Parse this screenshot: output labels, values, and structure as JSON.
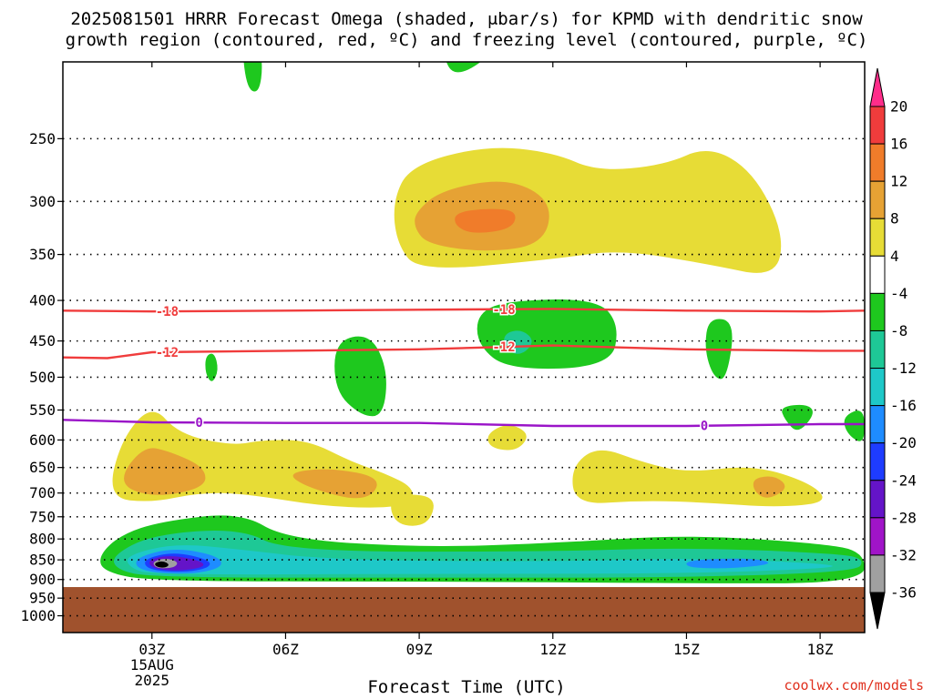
{
  "title_line1": "2025081501 HRRR Forecast Omega (shaded, μbar/s) for KPMD with dendritic snow",
  "title_line2": "growth region (contoured, red, ºC) and freezing level (contoured, purple, ºC)",
  "xlabel": "Forecast Time (UTC)",
  "credit": "coolwx.com/models",
  "chart_data": {
    "type": "heatmap",
    "title": "2025081501 HRRR Forecast Omega (shaded, μbar/s) for KPMD with dendritic snow growth region (contoured, red, ºC) and freezing level (contoured, purple, ºC)",
    "xlabel": "Forecast Time (UTC)",
    "ylabel": "",
    "x_ticks": [
      {
        "hour": 3,
        "label": "03Z"
      },
      {
        "hour": 6,
        "label": "06Z"
      },
      {
        "hour": 9,
        "label": "09Z"
      },
      {
        "hour": 12,
        "label": "12Z"
      },
      {
        "hour": 15,
        "label": "15Z"
      },
      {
        "hour": 18,
        "label": "18Z"
      }
    ],
    "date_label": [
      "15AUG",
      "2025"
    ],
    "xlim": [
      1,
      19
    ],
    "y_scale": "log-pressure",
    "ylim": [
      1050,
      200
    ],
    "y_ticks": [
      250,
      300,
      350,
      400,
      450,
      500,
      550,
      600,
      650,
      700,
      750,
      800,
      850,
      900,
      950,
      1000
    ],
    "grid": true,
    "surface_pressure": 920,
    "surface_color": "#a0522d",
    "colorbar": {
      "labels": [
        "20",
        "16",
        "12",
        "8",
        "4",
        "-4",
        "-8",
        "-12",
        "-16",
        "-20",
        "-24",
        "-28",
        "-32",
        "-36"
      ],
      "colors": [
        "#ff2d8a",
        "#f03c3c",
        "#f07c2a",
        "#e6a234",
        "#e7dc36",
        "#ffffff",
        "#1ec81e",
        "#1ec896",
        "#1ec8c8",
        "#1e8cff",
        "#1e3cff",
        "#6414c8",
        "#a014c8",
        "#a0a0a0",
        "#000000"
      ]
    },
    "contours": [
      {
        "label": "-18",
        "color": "#f03c3c",
        "points": [
          [
            1,
            412
          ],
          [
            3,
            413
          ],
          [
            6,
            412
          ],
          [
            9,
            411
          ],
          [
            12,
            410
          ],
          [
            15,
            412
          ],
          [
            18,
            413
          ],
          [
            19,
            412
          ]
        ]
      },
      {
        "label": "-12",
        "color": "#f03c3c",
        "points": [
          [
            1,
            472
          ],
          [
            2,
            473
          ],
          [
            3,
            465
          ],
          [
            6,
            463
          ],
          [
            9,
            461
          ],
          [
            12,
            456
          ],
          [
            15,
            461
          ],
          [
            18,
            463
          ],
          [
            19,
            463
          ]
        ]
      },
      {
        "label": "0",
        "color": "#9a14c8",
        "points": [
          [
            1,
            566
          ],
          [
            3,
            570
          ],
          [
            6,
            571
          ],
          [
            9,
            571
          ],
          [
            12,
            576
          ],
          [
            15,
            576
          ],
          [
            18,
            573
          ],
          [
            19,
            573
          ]
        ]
      }
    ],
    "omega_regions": [
      {
        "value": -4,
        "color": "#1ec81e",
        "outline": [
          [
            5.0,
            180
          ],
          [
            5.1,
            215
          ],
          [
            5.4,
            220
          ],
          [
            5.5,
            200
          ],
          [
            5.3,
            180
          ]
        ]
      },
      {
        "value": -4,
        "color": "#1ec81e",
        "outline": [
          [
            9.5,
            195
          ],
          [
            9.8,
            210
          ],
          [
            10.7,
            195
          ],
          [
            11.0,
            175
          ],
          [
            9.7,
            175
          ]
        ]
      },
      {
        "value": -4,
        "color": "#1ec81e",
        "outline": [
          [
            10.3,
            415
          ],
          [
            11.0,
            400
          ],
          [
            13.0,
            398
          ],
          [
            13.5,
            430
          ],
          [
            13.3,
            485
          ],
          [
            11.0,
            490
          ],
          [
            10.3,
            455
          ]
        ]
      },
      {
        "value": -8,
        "color": "#1ec896",
        "outline": [
          [
            10.9,
            440
          ],
          [
            11.3,
            435
          ],
          [
            11.6,
            450
          ],
          [
            11.3,
            470
          ],
          [
            10.9,
            462
          ]
        ]
      },
      {
        "value": -4,
        "color": "#1ec81e",
        "outline": [
          [
            7.1,
            450
          ],
          [
            7.9,
            440
          ],
          [
            8.3,
            490
          ],
          [
            8.2,
            560
          ],
          [
            7.7,
            560
          ],
          [
            7.1,
            520
          ]
        ]
      },
      {
        "value": -4,
        "color": "#1ec81e",
        "outline": [
          [
            4.2,
            470
          ],
          [
            4.4,
            465
          ],
          [
            4.5,
            490
          ],
          [
            4.35,
            510
          ],
          [
            4.2,
            495
          ]
        ]
      },
      {
        "value": -4,
        "color": "#1ec81e",
        "outline": [
          [
            15.5,
            420
          ],
          [
            16.1,
            425
          ],
          [
            15.9,
            505
          ],
          [
            15.6,
            500
          ],
          [
            15.4,
            460
          ]
        ]
      },
      {
        "value": -4,
        "color": "#1ec81e",
        "outline": [
          [
            17.1,
            545
          ],
          [
            17.7,
            540
          ],
          [
            17.9,
            555
          ],
          [
            17.5,
            590
          ],
          [
            17.2,
            565
          ]
        ]
      },
      {
        "value": -4,
        "color": "#1ec81e",
        "outline": [
          [
            18.5,
            560
          ],
          [
            19.0,
            545
          ],
          [
            19.0,
            610
          ],
          [
            18.6,
            590
          ]
        ]
      },
      {
        "value": -4,
        "color": "#1ec81e",
        "outline": [
          [
            1.8,
            840
          ],
          [
            2.3,
            790
          ],
          [
            3.2,
            760
          ],
          [
            5.0,
            740
          ],
          [
            6.0,
            800
          ],
          [
            9.0,
            820
          ],
          [
            12.0,
            810
          ],
          [
            15.0,
            790
          ],
          [
            18.0,
            810
          ],
          [
            19.0,
            830
          ],
          [
            19.0,
            910
          ],
          [
            15.0,
            910
          ],
          [
            9.0,
            905
          ],
          [
            3.0,
            905
          ],
          [
            1.9,
            880
          ]
        ]
      },
      {
        "value": -8,
        "color": "#1ec896",
        "outline": [
          [
            2.1,
            840
          ],
          [
            3.0,
            790
          ],
          [
            5.0,
            775
          ],
          [
            6.0,
            830
          ],
          [
            12.0,
            830
          ],
          [
            15.0,
            820
          ],
          [
            18.5,
            835
          ],
          [
            19.0,
            850
          ],
          [
            18.8,
            880
          ],
          [
            15.0,
            895
          ],
          [
            9.0,
            895
          ],
          [
            3.0,
            895
          ],
          [
            2.2,
            875
          ]
        ]
      },
      {
        "value": -12,
        "color": "#1ec8c8",
        "outline": [
          [
            2.4,
            840
          ],
          [
            3.5,
            810
          ],
          [
            5.0,
            825
          ],
          [
            7.0,
            850
          ],
          [
            12.0,
            855
          ],
          [
            15.0,
            845
          ],
          [
            18.0,
            858
          ],
          [
            18.5,
            870
          ],
          [
            15.0,
            885
          ],
          [
            9.0,
            885
          ],
          [
            3.0,
            888
          ],
          [
            2.5,
            870
          ]
        ]
      },
      {
        "value": -16,
        "color": "#1e8cff",
        "outline": [
          [
            15.0,
            850
          ],
          [
            16.5,
            845
          ],
          [
            17.0,
            860
          ],
          [
            16.0,
            872
          ],
          [
            15.0,
            870
          ]
        ]
      },
      {
        "value": -16,
        "color": "#1e8cff",
        "outline": [
          [
            2.6,
            845
          ],
          [
            3.5,
            820
          ],
          [
            4.5,
            840
          ],
          [
            4.6,
            870
          ],
          [
            3.8,
            888
          ],
          [
            2.7,
            878
          ]
        ]
      },
      {
        "value": -24,
        "color": "#1e3cff",
        "outline": [
          [
            2.8,
            848
          ],
          [
            3.5,
            830
          ],
          [
            4.3,
            850
          ],
          [
            4.3,
            870
          ],
          [
            3.7,
            882
          ],
          [
            2.9,
            875
          ]
        ]
      },
      {
        "value": -28,
        "color": "#6414c8",
        "outline": [
          [
            2.9,
            850
          ],
          [
            3.4,
            838
          ],
          [
            4.1,
            852
          ],
          [
            4.2,
            868
          ],
          [
            3.6,
            878
          ],
          [
            3.0,
            872
          ]
        ]
      },
      {
        "value": -32,
        "color": "#a0a0a0",
        "outline": [
          [
            3.0,
            855
          ],
          [
            3.3,
            845
          ],
          [
            3.6,
            855
          ],
          [
            3.5,
            870
          ],
          [
            3.1,
            872
          ]
        ]
      },
      {
        "value": -36,
        "color": "#000000",
        "outline": [
          [
            3.05,
            858
          ],
          [
            3.25,
            852
          ],
          [
            3.4,
            862
          ],
          [
            3.3,
            870
          ],
          [
            3.1,
            868
          ]
        ]
      },
      {
        "value": 4,
        "color": "#e7dc36",
        "outline": [
          [
            8.4,
            300
          ],
          [
            8.8,
            270
          ],
          [
            10.5,
            255
          ],
          [
            12.0,
            260
          ],
          [
            13.0,
            275
          ],
          [
            14.5,
            270
          ],
          [
            15.5,
            255
          ],
          [
            16.5,
            275
          ],
          [
            17.2,
            330
          ],
          [
            17.0,
            375
          ],
          [
            15.5,
            360
          ],
          [
            13.5,
            345
          ],
          [
            12.0,
            355
          ],
          [
            9.0,
            368
          ],
          [
            8.5,
            340
          ]
        ]
      },
      {
        "value": 8,
        "color": "#e6a234",
        "outline": [
          [
            8.9,
            310
          ],
          [
            9.5,
            290
          ],
          [
            11.0,
            280
          ],
          [
            12.0,
            300
          ],
          [
            11.8,
            340
          ],
          [
            10.5,
            348
          ],
          [
            9.2,
            340
          ],
          [
            8.9,
            325
          ]
        ]
      },
      {
        "value": 12,
        "color": "#f07c2a",
        "outline": [
          [
            9.8,
            310
          ],
          [
            10.5,
            306
          ],
          [
            11.2,
            308
          ],
          [
            11.1,
            325
          ],
          [
            10.2,
            330
          ],
          [
            9.8,
            322
          ]
        ]
      },
      {
        "value": 4,
        "color": "#e7dc36",
        "outline": [
          [
            2.0,
            710
          ],
          [
            2.3,
            600
          ],
          [
            3.0,
            540
          ],
          [
            3.6,
            590
          ],
          [
            4.8,
            610
          ],
          [
            5.5,
            600
          ],
          [
            6.5,
            600
          ],
          [
            7.5,
            640
          ],
          [
            8.2,
            660
          ],
          [
            8.9,
            690
          ],
          [
            8.8,
            730
          ],
          [
            7.0,
            730
          ],
          [
            5.0,
            700
          ],
          [
            4.0,
            700
          ],
          [
            3.0,
            720
          ]
        ]
      },
      {
        "value": 8,
        "color": "#e6a234",
        "outline": [
          [
            2.2,
            680
          ],
          [
            2.8,
            610
          ],
          [
            3.4,
            620
          ],
          [
            4.2,
            650
          ],
          [
            4.2,
            690
          ],
          [
            3.0,
            710
          ]
        ]
      },
      {
        "value": 8,
        "color": "#e6a234",
        "outline": [
          [
            6.0,
            660
          ],
          [
            7.0,
            650
          ],
          [
            8.2,
            670
          ],
          [
            7.8,
            720
          ],
          [
            6.5,
            690
          ]
        ]
      },
      {
        "value": 4,
        "color": "#e7dc36",
        "outline": [
          [
            10.5,
            590
          ],
          [
            11.0,
            570
          ],
          [
            11.5,
            590
          ],
          [
            11.2,
            620
          ],
          [
            10.6,
            615
          ]
        ]
      },
      {
        "value": 4,
        "color": "#e7dc36",
        "outline": [
          [
            8.3,
            720
          ],
          [
            8.7,
            700
          ],
          [
            9.4,
            710
          ],
          [
            9.2,
            770
          ],
          [
            8.5,
            770
          ]
        ]
      },
      {
        "value": 4,
        "color": "#e7dc36",
        "outline": [
          [
            12.4,
            650
          ],
          [
            13.0,
            610
          ],
          [
            14.0,
            640
          ],
          [
            15.0,
            660
          ],
          [
            16.5,
            645
          ],
          [
            17.8,
            680
          ],
          [
            18.2,
            720
          ],
          [
            17.0,
            730
          ],
          [
            15.5,
            720
          ],
          [
            14.0,
            715
          ],
          [
            12.5,
            725
          ]
        ]
      },
      {
        "value": 8,
        "color": "#e6a234",
        "outline": [
          [
            16.5,
            670
          ],
          [
            17.0,
            665
          ],
          [
            17.3,
            690
          ],
          [
            16.8,
            715
          ],
          [
            16.5,
            695
          ]
        ]
      }
    ]
  }
}
